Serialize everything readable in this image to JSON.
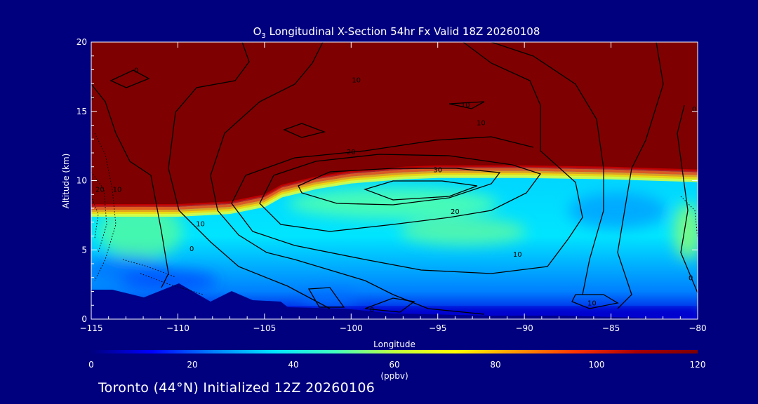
{
  "chart_data": {
    "type": "heatmap",
    "title": {
      "species_main": "O",
      "species_sub": "3",
      "rest": " Longitudinal X-Section 54hr  Fx Valid 18Z 20260108"
    },
    "xlabel": "Longitude",
    "ylabel": "Altitude (km)",
    "xlim": [
      -115,
      -80
    ],
    "ylim": [
      0,
      20
    ],
    "x_ticks": [
      -115,
      -110,
      -105,
      -100,
      -95,
      -90,
      -85,
      -80
    ],
    "x_tick_labels": [
      "−115",
      "−110",
      "−105",
      "−100",
      "−95",
      "−90",
      "−85",
      "−80"
    ],
    "y_ticks": [
      0,
      5,
      10,
      15,
      20
    ],
    "y_tick_labels": [
      "0",
      "5",
      "10",
      "15",
      "20"
    ],
    "colorbar": {
      "min": 0,
      "max": 120,
      "ticks": [
        0,
        20,
        40,
        60,
        80,
        100,
        120
      ],
      "tick_labels": [
        "0",
        "20",
        "40",
        "60",
        "80",
        "100",
        "120"
      ],
      "unit": "(ppbv)",
      "colors": [
        "#00007f",
        "#0000ff",
        "#007fff",
        "#00e5ff",
        "#40ffbf",
        "#bfff40",
        "#ffff00",
        "#ff9900",
        "#ff3300",
        "#aa0000",
        "#7f0000"
      ]
    },
    "tropopause_km": [
      [
        -115,
        8.2
      ],
      [
        -110,
        8.2
      ],
      [
        -107,
        8.4
      ],
      [
        -105,
        8.9
      ],
      [
        -104,
        9.6
      ],
      [
        -102,
        10.2
      ],
      [
        -100,
        10.6
      ],
      [
        -97,
        10.9
      ],
      [
        -95,
        11.0
      ],
      [
        -90,
        11.0
      ],
      [
        -85,
        10.9
      ],
      [
        -80,
        10.7
      ]
    ],
    "contour_labels": [
      {
        "lon": -112.4,
        "alt": 17.8,
        "text": "0"
      },
      {
        "lon": -115,
        "alt": 15.8,
        "text": "0"
      },
      {
        "lon": -99.7,
        "alt": 17.1,
        "text": "10"
      },
      {
        "lon": -93.4,
        "alt": 15.3,
        "text": "10"
      },
      {
        "lon": -92.5,
        "alt": 14.0,
        "text": "10"
      },
      {
        "lon": -80.2,
        "alt": 15.0,
        "text": "0"
      },
      {
        "lon": -100.0,
        "alt": 11.9,
        "text": "20"
      },
      {
        "lon": -95.0,
        "alt": 10.6,
        "text": "30"
      },
      {
        "lon": -114.5,
        "alt": 9.2,
        "text": "20"
      },
      {
        "lon": -113.5,
        "alt": 9.2,
        "text": "10"
      },
      {
        "lon": -108.7,
        "alt": 6.7,
        "text": "10"
      },
      {
        "lon": -94.0,
        "alt": 7.6,
        "text": "20"
      },
      {
        "lon": -109.2,
        "alt": 4.9,
        "text": "0"
      },
      {
        "lon": -90.4,
        "alt": 4.5,
        "text": "10"
      },
      {
        "lon": -80.4,
        "alt": 2.8,
        "text": "0"
      },
      {
        "lon": -86.1,
        "alt": 1.0,
        "text": "10"
      },
      {
        "lon": -98.8,
        "alt": 0.5,
        "text": "0"
      }
    ]
  },
  "footer": {
    "text": "Toronto (44°N) Initialized 12Z 20260106"
  }
}
